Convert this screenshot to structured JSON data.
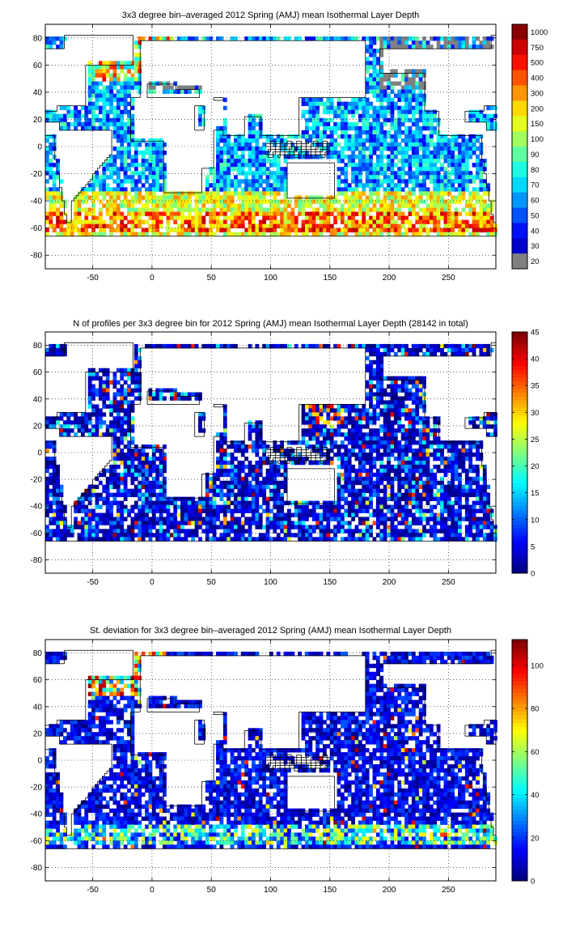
{
  "panels": [
    {
      "id": "mean",
      "title": "3x3 degree bin–averaged 2012 Spring (AMJ) mean Isothermal Layer Depth",
      "colormap": "jet",
      "x_ticks": [
        "-50",
        "0",
        "50",
        "100",
        "150",
        "200",
        "250"
      ],
      "x_tick_values": [
        -50,
        0,
        50,
        100,
        150,
        200,
        250
      ],
      "y_ticks": [
        "80",
        "60",
        "40",
        "20",
        "0",
        "-20",
        "-40",
        "-60",
        "-80"
      ],
      "y_tick_values": [
        80,
        60,
        40,
        20,
        0,
        -20,
        -40,
        -60,
        -80
      ],
      "lon_range": [
        -90,
        290
      ],
      "lat_range": [
        -90,
        90
      ],
      "colorbar": {
        "scale": "categorical",
        "labels": [
          "1000",
          "750",
          "500",
          "400",
          "300",
          "200",
          "150",
          "100",
          "90",
          "80",
          "70",
          "60",
          "50",
          "40",
          "30",
          "20"
        ],
        "lowest_class_color": "#808080"
      },
      "field_note": "mean",
      "grid": true
    },
    {
      "id": "count",
      "title": "N of profiles per 3x3 degree bin for 2012 Spring (AMJ) mean Isothermal Layer Depth  (28142 in total)",
      "colormap": "jet",
      "x_ticks": [
        "-50",
        "0",
        "50",
        "100",
        "150",
        "200",
        "250"
      ],
      "x_tick_values": [
        -50,
        0,
        50,
        100,
        150,
        200,
        250
      ],
      "y_ticks": [
        "80",
        "60",
        "40",
        "20",
        "0",
        "-20",
        "-40",
        "-60",
        "-80"
      ],
      "y_tick_values": [
        80,
        60,
        40,
        20,
        0,
        -20,
        -40,
        -60,
        -80
      ],
      "lon_range": [
        -90,
        290
      ],
      "lat_range": [
        -90,
        90
      ],
      "colorbar": {
        "scale": "linear",
        "min": 0,
        "max": 45,
        "labels": [
          "45",
          "40",
          "35",
          "30",
          "25",
          "20",
          "15",
          "10",
          "5",
          "0"
        ],
        "label_values": [
          45,
          40,
          35,
          30,
          25,
          20,
          15,
          10,
          5,
          0
        ]
      },
      "field_note": "count",
      "grid": true
    },
    {
      "id": "std",
      "title": "St. deviation for 3x3 degree bin–averaged 2012 Spring (AMJ) mean Isothermal Layer Depth",
      "colormap": "jet",
      "x_ticks": [
        "-50",
        "0",
        "50",
        "100",
        "150",
        "200",
        "250"
      ],
      "x_tick_values": [
        -50,
        0,
        50,
        100,
        150,
        200,
        250
      ],
      "y_ticks": [
        "80",
        "60",
        "40",
        "20",
        "0",
        "-20",
        "-40",
        "-60",
        "-80"
      ],
      "y_tick_values": [
        80,
        60,
        40,
        20,
        0,
        -20,
        -40,
        -60,
        -80
      ],
      "lon_range": [
        -90,
        290
      ],
      "lat_range": [
        -90,
        90
      ],
      "colorbar": {
        "scale": "linear",
        "min": 0,
        "max": 112,
        "labels": [
          "100",
          "80",
          "60",
          "40",
          "20",
          "0"
        ],
        "label_values": [
          100,
          80,
          60,
          40,
          20,
          0
        ]
      },
      "field_note": "std",
      "grid": true
    }
  ]
}
